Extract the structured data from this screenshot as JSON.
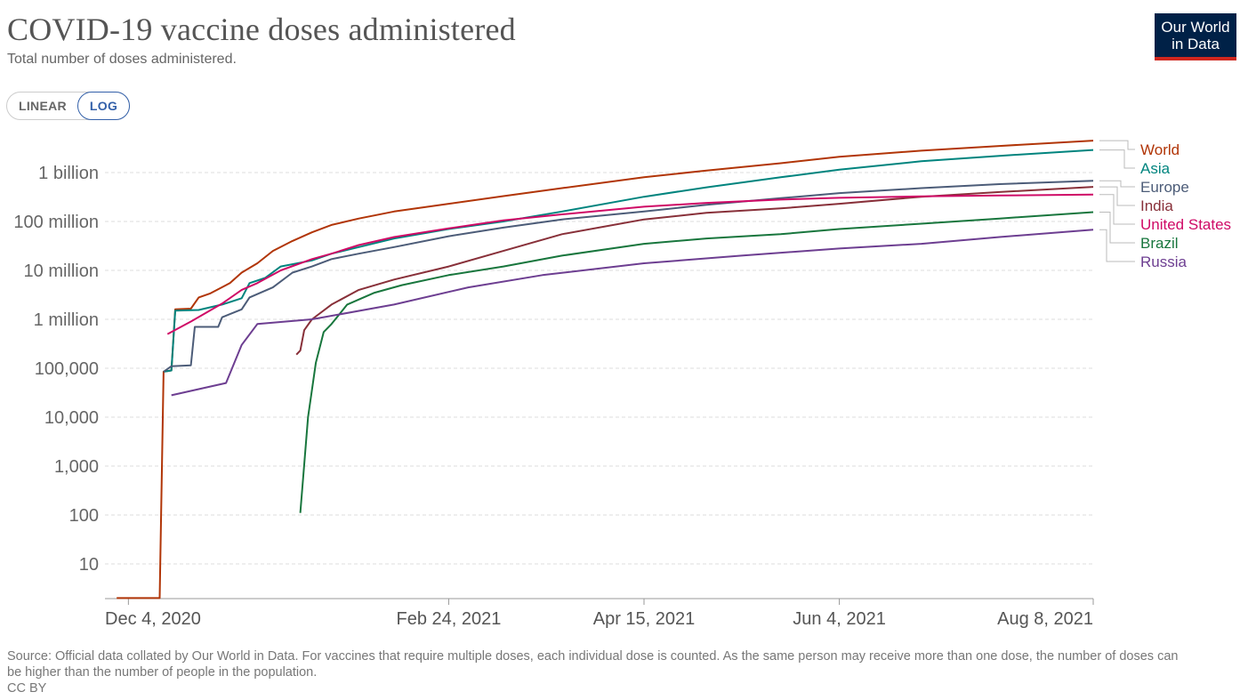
{
  "header": {
    "title": "COVID-19 vaccine doses administered",
    "subtitle": "Total number of doses administered.",
    "logo_line1": "Our World",
    "logo_line2": "in Data"
  },
  "scale_toggle": {
    "linear_label": "LINEAR",
    "log_label": "LOG",
    "selected": "LOG"
  },
  "footer": {
    "source": "Source: Official data collated by Our World in Data. For vaccines that require multiple doses, each individual dose is counted. As the same person may receive more than one dose, the number of doses can be higher than the number of people in the population.",
    "license": "CC BY"
  },
  "chart_data": {
    "type": "line",
    "scale": "log",
    "grid": true,
    "legend_position": "right",
    "x_range": [
      "2020-12-04",
      "2021-08-08"
    ],
    "y_range": [
      1,
      5000000000
    ],
    "x_ticks": [
      {
        "date": "2020-12-04",
        "label": "Dec 4, 2020"
      },
      {
        "date": "2021-02-24",
        "label": "Feb 24, 2021"
      },
      {
        "date": "2021-04-15",
        "label": "Apr 15, 2021"
      },
      {
        "date": "2021-06-04",
        "label": "Jun 4, 2021"
      },
      {
        "date": "2021-08-08",
        "label": "Aug 8, 2021"
      }
    ],
    "y_ticks": [
      {
        "value": 10,
        "label": "10"
      },
      {
        "value": 100,
        "label": "100"
      },
      {
        "value": 1000,
        "label": "1,000"
      },
      {
        "value": 10000,
        "label": "10,000"
      },
      {
        "value": 100000,
        "label": "100,000"
      },
      {
        "value": 1000000,
        "label": "1 million"
      },
      {
        "value": 10000000,
        "label": "10 million"
      },
      {
        "value": 100000000,
        "label": "100 million"
      },
      {
        "value": 1000000000,
        "label": "1 billion"
      }
    ],
    "series": [
      {
        "name": "World",
        "color": "#b13507",
        "points": [
          [
            "2020-12-01",
            2
          ],
          [
            "2020-12-12",
            2
          ],
          [
            "2020-12-13",
            85000
          ],
          [
            "2020-12-15",
            90000
          ],
          [
            "2020-12-16",
            1600000
          ],
          [
            "2020-12-20",
            1650000
          ],
          [
            "2020-12-22",
            2800000
          ],
          [
            "2020-12-25",
            3400000
          ],
          [
            "2020-12-30",
            5500000
          ],
          [
            "2021-01-02",
            9000000
          ],
          [
            "2021-01-06",
            14000000
          ],
          [
            "2021-01-10",
            25000000
          ],
          [
            "2021-01-15",
            40000000
          ],
          [
            "2021-01-20",
            60000000
          ],
          [
            "2021-01-25",
            85000000
          ],
          [
            "2021-02-01",
            115000000
          ],
          [
            "2021-02-10",
            160000000
          ],
          [
            "2021-02-24",
            230000000
          ],
          [
            "2021-03-10",
            330000000
          ],
          [
            "2021-03-25",
            480000000
          ],
          [
            "2021-04-15",
            800000000
          ],
          [
            "2021-05-01",
            1100000000
          ],
          [
            "2021-05-20",
            1550000000
          ],
          [
            "2021-06-04",
            2100000000
          ],
          [
            "2021-06-25",
            2800000000
          ],
          [
            "2021-07-15",
            3500000000
          ],
          [
            "2021-08-08",
            4500000000
          ]
        ]
      },
      {
        "name": "Asia",
        "color": "#00847e",
        "points": [
          [
            "2020-12-13",
            85000
          ],
          [
            "2020-12-15",
            90000
          ],
          [
            "2020-12-16",
            1500000
          ],
          [
            "2020-12-22",
            1550000
          ],
          [
            "2020-12-28",
            2000000
          ],
          [
            "2021-01-02",
            2700000
          ],
          [
            "2021-01-04",
            5500000
          ],
          [
            "2021-01-08",
            7000000
          ],
          [
            "2021-01-12",
            12000000
          ],
          [
            "2021-01-20",
            16000000
          ],
          [
            "2021-01-25",
            22000000
          ],
          [
            "2021-02-01",
            30000000
          ],
          [
            "2021-02-10",
            45000000
          ],
          [
            "2021-02-24",
            70000000
          ],
          [
            "2021-03-10",
            100000000
          ],
          [
            "2021-03-25",
            160000000
          ],
          [
            "2021-04-15",
            320000000
          ],
          [
            "2021-05-01",
            500000000
          ],
          [
            "2021-05-20",
            800000000
          ],
          [
            "2021-06-04",
            1150000000
          ],
          [
            "2021-06-25",
            1700000000
          ],
          [
            "2021-07-15",
            2200000000
          ],
          [
            "2021-08-08",
            2900000000
          ]
        ]
      },
      {
        "name": "Europe",
        "color": "#4c5c78",
        "points": [
          [
            "2020-12-13",
            85000
          ],
          [
            "2020-12-15",
            110000
          ],
          [
            "2020-12-20",
            115000
          ],
          [
            "2020-12-21",
            700000
          ],
          [
            "2020-12-27",
            700000
          ],
          [
            "2020-12-28",
            1100000
          ],
          [
            "2021-01-02",
            1600000
          ],
          [
            "2021-01-04",
            2800000
          ],
          [
            "2021-01-10",
            4500000
          ],
          [
            "2021-01-15",
            9000000
          ],
          [
            "2021-01-20",
            12000000
          ],
          [
            "2021-01-25",
            17000000
          ],
          [
            "2021-02-01",
            22000000
          ],
          [
            "2021-02-10",
            30000000
          ],
          [
            "2021-02-24",
            50000000
          ],
          [
            "2021-03-10",
            75000000
          ],
          [
            "2021-03-25",
            110000000
          ],
          [
            "2021-04-15",
            160000000
          ],
          [
            "2021-05-01",
            220000000
          ],
          [
            "2021-05-20",
            300000000
          ],
          [
            "2021-06-04",
            380000000
          ],
          [
            "2021-06-25",
            480000000
          ],
          [
            "2021-07-15",
            580000000
          ],
          [
            "2021-08-08",
            680000000
          ]
        ]
      },
      {
        "name": "India",
        "color": "#883039",
        "points": [
          [
            "2021-01-16",
            190000
          ],
          [
            "2021-01-17",
            230000
          ],
          [
            "2021-01-18",
            600000
          ],
          [
            "2021-01-20",
            1000000
          ],
          [
            "2021-01-25",
            2000000
          ],
          [
            "2021-02-01",
            4000000
          ],
          [
            "2021-02-10",
            6500000
          ],
          [
            "2021-02-24",
            12000000
          ],
          [
            "2021-03-10",
            25000000
          ],
          [
            "2021-03-25",
            55000000
          ],
          [
            "2021-04-15",
            110000000
          ],
          [
            "2021-05-01",
            150000000
          ],
          [
            "2021-05-20",
            185000000
          ],
          [
            "2021-06-04",
            230000000
          ],
          [
            "2021-06-25",
            320000000
          ],
          [
            "2021-07-15",
            400000000
          ],
          [
            "2021-08-08",
            510000000
          ]
        ]
      },
      {
        "name": "United States",
        "color": "#cf0a66",
        "points": [
          [
            "2020-12-14",
            500000
          ],
          [
            "2020-12-20",
            900000
          ],
          [
            "2020-12-28",
            2100000
          ],
          [
            "2021-01-02",
            4000000
          ],
          [
            "2021-01-06",
            5500000
          ],
          [
            "2021-01-12",
            10000000
          ],
          [
            "2021-01-20",
            17000000
          ],
          [
            "2021-01-25",
            22000000
          ],
          [
            "2021-02-01",
            33000000
          ],
          [
            "2021-02-10",
            48000000
          ],
          [
            "2021-02-24",
            72000000
          ],
          [
            "2021-03-10",
            105000000
          ],
          [
            "2021-03-25",
            140000000
          ],
          [
            "2021-04-15",
            200000000
          ],
          [
            "2021-05-01",
            240000000
          ],
          [
            "2021-05-20",
            280000000
          ],
          [
            "2021-06-04",
            305000000
          ],
          [
            "2021-06-25",
            325000000
          ],
          [
            "2021-07-15",
            340000000
          ],
          [
            "2021-08-08",
            355000000
          ]
        ]
      },
      {
        "name": "Brazil",
        "color": "#18763d",
        "points": [
          [
            "2021-01-17",
            110
          ],
          [
            "2021-01-19",
            10000
          ],
          [
            "2021-01-21",
            130000
          ],
          [
            "2021-01-23",
            550000
          ],
          [
            "2021-01-25",
            800000
          ],
          [
            "2021-01-29",
            2000000
          ],
          [
            "2021-02-05",
            3500000
          ],
          [
            "2021-02-12",
            5000000
          ],
          [
            "2021-02-24",
            8000000
          ],
          [
            "2021-03-10",
            12000000
          ],
          [
            "2021-03-25",
            20000000
          ],
          [
            "2021-04-15",
            35000000
          ],
          [
            "2021-05-01",
            45000000
          ],
          [
            "2021-05-20",
            55000000
          ],
          [
            "2021-06-04",
            70000000
          ],
          [
            "2021-06-25",
            90000000
          ],
          [
            "2021-07-15",
            115000000
          ],
          [
            "2021-08-08",
            155000000
          ]
        ]
      },
      {
        "name": "Russia",
        "color": "#6d3e91",
        "points": [
          [
            "2020-12-15",
            28000
          ],
          [
            "2020-12-29",
            50000
          ],
          [
            "2021-01-02",
            300000
          ],
          [
            "2021-01-06",
            800000
          ],
          [
            "2021-01-20",
            1000000
          ],
          [
            "2021-02-10",
            2000000
          ],
          [
            "2021-03-01",
            4500000
          ],
          [
            "2021-03-20",
            8000000
          ],
          [
            "2021-04-15",
            14000000
          ],
          [
            "2021-05-10",
            20000000
          ],
          [
            "2021-06-04",
            28000000
          ],
          [
            "2021-06-25",
            35000000
          ],
          [
            "2021-07-15",
            48000000
          ],
          [
            "2021-08-08",
            68000000
          ]
        ]
      }
    ]
  }
}
